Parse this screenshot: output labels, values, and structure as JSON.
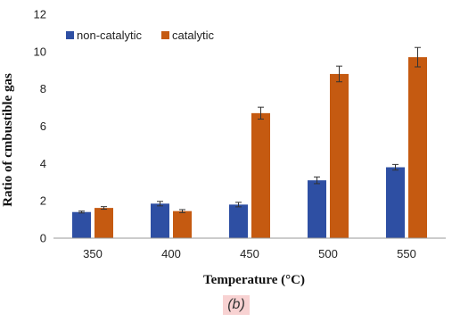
{
  "chart_data": {
    "type": "bar",
    "categories": [
      "350",
      "400",
      "450",
      "500",
      "550"
    ],
    "series": [
      {
        "name": "non-catalytic",
        "values": [
          1.4,
          1.85,
          1.8,
          3.1,
          3.8
        ],
        "errors": [
          0.05,
          0.12,
          0.12,
          0.18,
          0.15
        ],
        "color": "#2e4fa3"
      },
      {
        "name": "catalytic",
        "values": [
          1.62,
          1.45,
          6.7,
          8.8,
          9.7
        ],
        "errors": [
          0.07,
          0.08,
          0.32,
          0.42,
          0.52
        ],
        "color": "#c55a11"
      }
    ],
    "xlabel": "Temperature (°C)",
    "ylabel": "Ratio of cmbustible  gas",
    "ylim": [
      0,
      12
    ],
    "yticks": [
      "0",
      "2",
      "4",
      "6",
      "8",
      "10",
      "12"
    ],
    "grid": false,
    "legend": "top-left"
  },
  "panel_label": "(b)"
}
